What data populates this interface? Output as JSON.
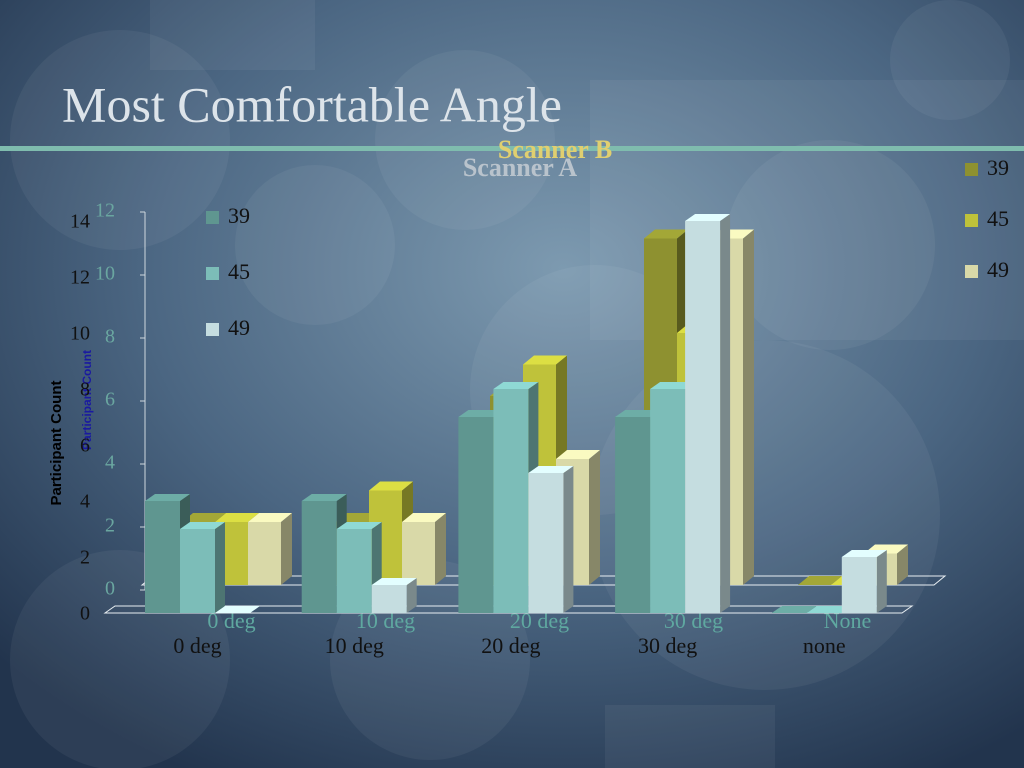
{
  "title": "Most Comfortable Angle",
  "chart_data": [
    {
      "type": "bar",
      "title": "Scanner B",
      "y_label": "Participant Count",
      "categories": [
        "0 deg",
        "10 deg",
        "20 deg",
        "30 deg",
        "None"
      ],
      "series": [
        {
          "name": "39",
          "color": "#8e9130",
          "values": [
            2,
            2,
            6,
            11,
            0
          ]
        },
        {
          "name": "45",
          "color": "#bfc23a",
          "values": [
            2,
            3,
            7,
            8,
            0
          ]
        },
        {
          "name": "49",
          "color": "#d9d9a8",
          "values": [
            2,
            2,
            4,
            11,
            1
          ]
        }
      ],
      "ylim": [
        0,
        12
      ],
      "yticks": [
        0,
        2,
        4,
        6,
        8,
        10,
        12
      ]
    },
    {
      "type": "bar",
      "title": "Scanner A",
      "y_label": "Participant Count",
      "categories": [
        "0 deg",
        "10 deg",
        "20 deg",
        "30 deg",
        "none"
      ],
      "series": [
        {
          "name": "39",
          "color": "#5f9690",
          "values": [
            4,
            4,
            7,
            7,
            0
          ]
        },
        {
          "name": "45",
          "color": "#7cbdb8",
          "values": [
            3,
            3,
            8,
            8,
            0
          ]
        },
        {
          "name": "49",
          "color": "#c5dde0",
          "values": [
            0,
            1,
            5,
            14,
            2
          ]
        }
      ],
      "ylim": [
        0,
        14
      ],
      "yticks": [
        0,
        2,
        4,
        6,
        8,
        10,
        12,
        14
      ]
    }
  ]
}
